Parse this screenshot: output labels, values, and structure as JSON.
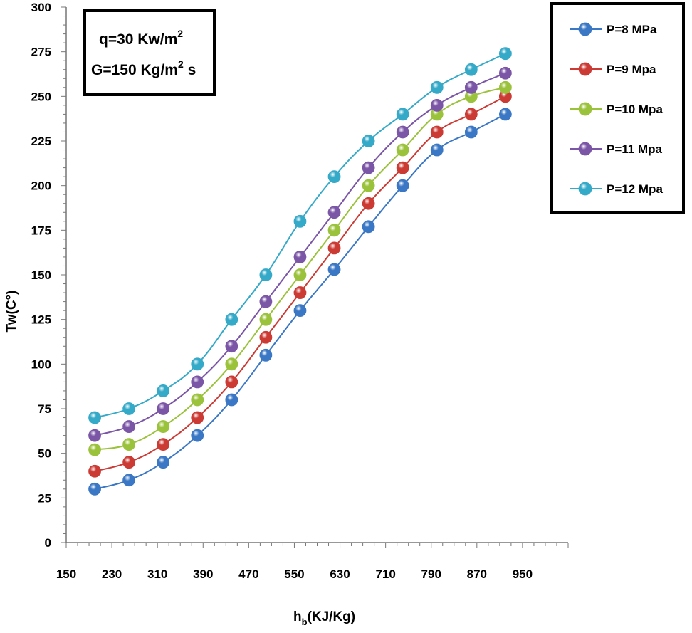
{
  "chart_data": {
    "type": "line",
    "title": "",
    "xlabel": "h",
    "xlabel_sub": "b",
    "xlabel_rest": "(KJ/Kg)",
    "ylabel": "Tw(C°)",
    "xlim": [
      150,
      1030
    ],
    "ylim": [
      0,
      300
    ],
    "xticks": [
      150,
      230,
      310,
      390,
      470,
      550,
      630,
      710,
      790,
      870,
      950
    ],
    "yticks": [
      0,
      25,
      50,
      75,
      100,
      125,
      150,
      175,
      200,
      225,
      250,
      275,
      300
    ],
    "x": [
      200,
      260,
      320,
      380,
      440,
      500,
      560,
      620,
      680,
      740,
      800,
      860,
      920
    ],
    "series": [
      {
        "name": "P=8 MPa",
        "color": "#3a77c4",
        "values": [
          30,
          35,
          45,
          60,
          80,
          105,
          130,
          153,
          177,
          200,
          220,
          230,
          240
        ]
      },
      {
        "name": "P=9 Mpa",
        "color": "#cc3a34",
        "values": [
          40,
          45,
          55,
          70,
          90,
          115,
          140,
          165,
          190,
          210,
          230,
          240,
          250
        ]
      },
      {
        "name": "P=10 Mpa",
        "color": "#9bc23b",
        "values": [
          52,
          55,
          65,
          80,
          100,
          125,
          150,
          175,
          200,
          220,
          240,
          250,
          255
        ]
      },
      {
        "name": "P=11 Mpa",
        "color": "#7b55a6",
        "values": [
          60,
          65,
          75,
          90,
          110,
          135,
          160,
          185,
          210,
          230,
          245,
          255,
          263
        ]
      },
      {
        "name": "P=12 Mpa",
        "color": "#34a9c8",
        "values": [
          70,
          75,
          85,
          100,
          125,
          150,
          180,
          205,
          225,
          240,
          255,
          265,
          274
        ]
      }
    ],
    "annotation": {
      "line1_prefix": "q=30 Kw/m",
      "line1_sup": "2",
      "line2_prefix": "G=150 Kg/m",
      "line2_sup": "2",
      "line2_suffix": " s"
    },
    "legend_position": "top-right",
    "grid": false
  }
}
